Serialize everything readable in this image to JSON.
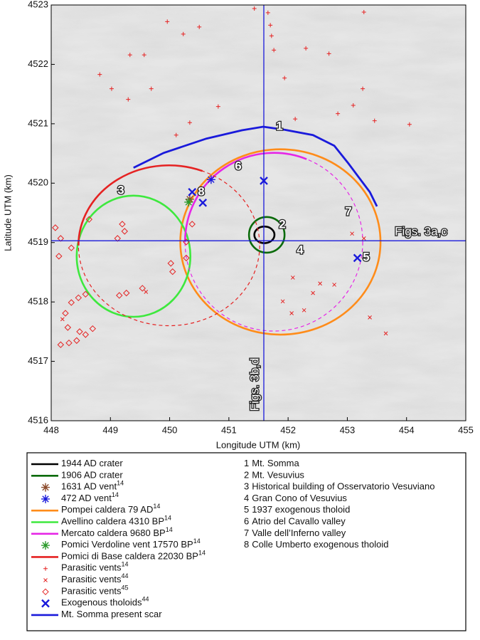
{
  "chart_data": {
    "type": "map",
    "xlabel": "Longitude UTM (km)",
    "ylabel": "Latitude UTM (km)",
    "xlim": [
      448,
      455
    ],
    "ylim": [
      4516,
      4523
    ],
    "xticks": [
      448,
      449,
      450,
      451,
      452,
      453,
      454,
      455
    ],
    "yticks": [
      4516,
      4517,
      4518,
      4519,
      4520,
      4521,
      4522,
      4523
    ],
    "crosshair": {
      "x": 451.59,
      "y": 4519.03,
      "color": "#1a1adb",
      "x_label": "Figs. 3b,d",
      "y_label": "Figs. 3a,c"
    },
    "series": [
      {
        "name": "1944 AD crater",
        "kind": "ellipse",
        "color": "#000000",
        "center_x": 451.6,
        "center_y": 4519.13,
        "rx": 0.17,
        "ry": 0.14
      },
      {
        "name": "1906 AD crater",
        "kind": "ellipse",
        "color": "#0b6b0b",
        "center_x": 451.64,
        "center_y": 4519.13,
        "rx": 0.3,
        "ry": 0.3
      },
      {
        "name": "1631 AD vent",
        "superscript": "14",
        "kind": "marker",
        "marker": "asterisk",
        "color": "#8b4a2b",
        "x": [
          450.34
        ],
        "y": [
          4519.73
        ]
      },
      {
        "name": "472 AD vent",
        "superscript": "14",
        "kind": "marker",
        "marker": "asterisk",
        "color": "#1a1adb",
        "x": [
          450.7
        ],
        "y": [
          4520.06
        ]
      },
      {
        "name": "Pompei caldera 79 AD",
        "superscript": "14",
        "kind": "ellipse",
        "color": "#ff8c1a",
        "center_x": 451.87,
        "center_y": 4519.01,
        "rx": 1.69,
        "ry": 1.56
      },
      {
        "name": "Avellino caldera 4310 BP",
        "superscript": "14",
        "kind": "ellipse",
        "color": "#3ee83e",
        "center_x": 449.39,
        "center_y": 4518.77,
        "rx": 0.96,
        "ry": 1.02
      },
      {
        "name": "Mercato caldera 9680 BP",
        "superscript": "14",
        "kind": "ellipse",
        "dashed": true,
        "color": "#e626e6",
        "center_x": 451.76,
        "center_y": 4519.01,
        "rx": 1.5,
        "ry": 1.5
      },
      {
        "name": "Pomici Verdoline vent 17570 BP",
        "superscript": "14",
        "kind": "marker",
        "marker": "asterisk",
        "color": "#2a9a2a",
        "x": [
          450.32
        ],
        "y": [
          4519.68
        ]
      },
      {
        "name": "Pomici di Base caldera 22030 BP",
        "superscript": "14",
        "kind": "ellipse",
        "dashed": true,
        "color": "#e52222",
        "center_x": 449.99,
        "center_y": 4518.95,
        "rx": 1.53,
        "ry": 1.35
      },
      {
        "name": "Parasitic vents",
        "superscript": "14",
        "kind": "marker",
        "marker": "plus",
        "color": "#e52222",
        "x": [
          449.96,
          450.23,
          450.5,
          451.43,
          451.66,
          451.7,
          451.72,
          451.76,
          449.33,
          449.57,
          448.82,
          449.02,
          449.3,
          449.69,
          450.11,
          450.34,
          450.82,
          451.94,
          452.12,
          452.3,
          452.69,
          452.84,
          453.1,
          453.26,
          453.46,
          453.28,
          454.05
        ],
        "y": [
          4522.72,
          4522.51,
          4522.63,
          4522.94,
          4522.87,
          4522.66,
          4522.48,
          4522.24,
          4522.16,
          4522.16,
          4521.83,
          4521.59,
          4521.41,
          4521.59,
          4520.81,
          4521.02,
          4521.29,
          4521.77,
          4521.08,
          4522.27,
          4522.18,
          4521.17,
          4521.31,
          4521.59,
          4521.05,
          4522.88,
          4520.99
        ]
      },
      {
        "name": "Parasitic vents",
        "superscript": "44",
        "kind": "marker",
        "marker": "x",
        "color": "#e52222",
        "x": [
          453.08,
          453.28,
          452.54,
          452.42,
          452.08,
          451.91,
          452.06,
          452.27,
          452.78,
          453.38,
          453.65,
          449.6,
          448.19
        ],
        "y": [
          4519.15,
          4519.07,
          4518.31,
          4518.15,
          4518.41,
          4518.01,
          4517.81,
          4517.86,
          4518.29,
          4517.74,
          4517.47,
          4518.17,
          4517.71
        ]
      },
      {
        "name": "Parasitic vents",
        "superscript": "45",
        "kind": "marker",
        "marker": "diamond",
        "color": "#e52222",
        "x": [
          448.07,
          448.16,
          448.34,
          448.13,
          448.64,
          449.2,
          449.24,
          449.12,
          450.28,
          450.28,
          450.02,
          450.05,
          450.38,
          448.34,
          448.46,
          448.58,
          448.24,
          448.28,
          448.48,
          448.58,
          448.7,
          448.16,
          448.3,
          448.43,
          449.15,
          449.27,
          449.54
        ],
        "y": [
          4519.25,
          4519.07,
          4518.91,
          4518.77,
          4519.39,
          4519.31,
          4519.19,
          4519.07,
          4519.01,
          4518.74,
          4518.65,
          4518.51,
          4519.31,
          4517.99,
          4518.07,
          4518.13,
          4517.81,
          4517.57,
          4517.5,
          4517.45,
          4517.55,
          4517.28,
          4517.31,
          4517.35,
          4518.11,
          4518.15,
          4518.23
        ]
      },
      {
        "name": "Exogenous tholoids",
        "superscript": "44",
        "kind": "marker",
        "marker": "bigx",
        "color": "#1a1adb",
        "x": [
          450.38,
          450.56,
          451.59,
          453.17
        ],
        "y": [
          4519.85,
          4519.67,
          4520.04,
          4518.74
        ]
      },
      {
        "name": "Mt. Somma present scar",
        "kind": "line",
        "color": "#1a1adb",
        "x": [
          449.39,
          449.9,
          450.62,
          451.22,
          451.58,
          451.94,
          452.42,
          452.78,
          453.02,
          453.2,
          453.38,
          453.5
        ],
        "y": [
          4520.26,
          4520.51,
          4520.75,
          4520.89,
          4520.95,
          4520.9,
          4520.81,
          4520.63,
          4520.33,
          4520.09,
          4519.85,
          4519.61
        ]
      }
    ],
    "sites": [
      {
        "number": "1",
        "name": "Mt. Somma"
      },
      {
        "number": "2",
        "name": "Mt. Vesuvius"
      },
      {
        "number": "3",
        "name": "Historical building of Osservatorio Vesuviano"
      },
      {
        "number": "4",
        "name": "Gran Cono of Vesuvius"
      },
      {
        "number": "5",
        "name": "1937 exogenous tholoid"
      },
      {
        "number": "6",
        "name": "Atrio del Cavallo valley"
      },
      {
        "number": "7",
        "name": "Valle dell’Inferno valley"
      },
      {
        "number": "8",
        "name": "Colle Umberto exogenous tholoid"
      }
    ]
  }
}
